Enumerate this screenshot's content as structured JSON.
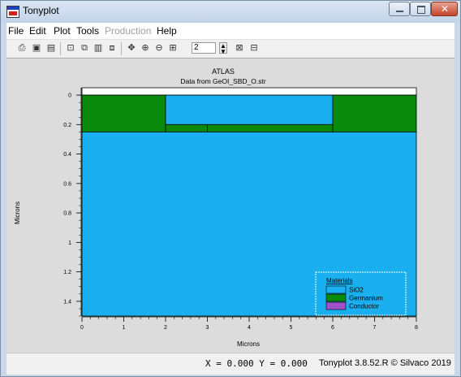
{
  "window": {
    "title": "Tonyplot"
  },
  "menu": {
    "file": "File",
    "edit": "Edit",
    "plot": "Plot",
    "tools": "Tools",
    "production": "Production",
    "help": "Help"
  },
  "toolbar": {
    "zoom_value": "2"
  },
  "plot": {
    "title": "ATLAS",
    "subtitle": "Data from GeOI_SBD_O.str",
    "xlabel": "Microns",
    "ylabel": "Microns",
    "x_ticks": [
      "0",
      "1",
      "2",
      "3",
      "4",
      "5",
      "6",
      "7",
      "8"
    ],
    "y_ticks": [
      "0",
      "0.2",
      "0.4",
      "0.6",
      "0.8",
      "1",
      "1.2",
      "1.4"
    ],
    "legend": {
      "title": "Materials",
      "items": [
        {
          "label": "SiO2",
          "color": "#1ab0f0"
        },
        {
          "label": "Germanium",
          "color": "#0a8a0a"
        },
        {
          "label": "Conductor",
          "color": "#a050c8"
        }
      ]
    }
  },
  "chart_data": {
    "type": "heatmap",
    "title": "ATLAS",
    "subtitle": "Data from GeOI_SBD_O.str",
    "xlabel": "Microns",
    "ylabel": "Microns",
    "xlim": [
      0,
      8
    ],
    "ylim": [
      1.5,
      -0.05
    ],
    "regions": [
      {
        "material": "Conductor",
        "x": [
          0,
          8
        ],
        "y": [
          -0.05,
          0.0
        ],
        "color": "#ffffff"
      },
      {
        "material": "Germanium",
        "x": [
          0,
          2
        ],
        "y": [
          0.0,
          0.25
        ],
        "color": "#0a8a0a"
      },
      {
        "material": "SiO2",
        "x": [
          2,
          6
        ],
        "y": [
          0.0,
          0.2
        ],
        "color": "#1ab0f0"
      },
      {
        "material": "Germanium",
        "x": [
          2,
          6
        ],
        "y": [
          0.2,
          0.25
        ],
        "color": "#0a8a0a"
      },
      {
        "material": "Germanium",
        "x": [
          6,
          8
        ],
        "y": [
          0.0,
          0.25
        ],
        "color": "#0a8a0a"
      },
      {
        "material": "SiO2",
        "x": [
          0,
          8
        ],
        "y": [
          0.25,
          1.5
        ],
        "color": "#1ab0f0"
      }
    ]
  },
  "status": {
    "coords": "X = 0.000 Y = 0.000",
    "copyright": "Tonyplot 3.8.52.R © Silvaco 2019"
  }
}
